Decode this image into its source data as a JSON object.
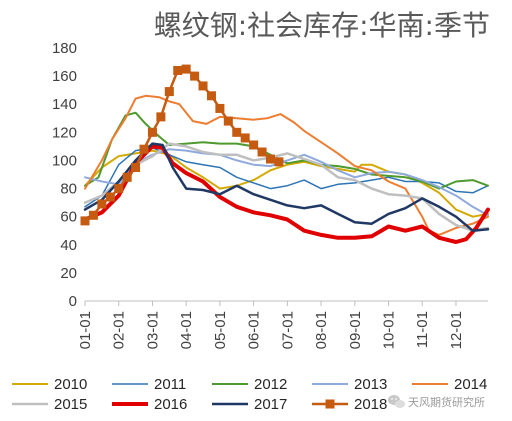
{
  "chart_data": {
    "type": "line",
    "title": "螺纹钢:社会库存:华南:季节",
    "xlabel": "",
    "ylabel": "",
    "ylim": [
      0,
      180
    ],
    "yticks": [
      0,
      20,
      40,
      60,
      80,
      100,
      120,
      140,
      160,
      180
    ],
    "categories": [
      "01-01",
      "02-01",
      "03-01",
      "04-01",
      "05-01",
      "06-01",
      "07-01",
      "08-01",
      "09-01",
      "10-01",
      "11-01",
      "12-01"
    ],
    "x_domain": [
      0,
      11.95
    ],
    "grid": false,
    "legend": "bottom",
    "series": [
      {
        "name": "2010",
        "color": "#d4a900",
        "width": 2,
        "marker": "none",
        "points": [
          [
            0,
            82
          ],
          [
            0.5,
            95
          ],
          [
            1,
            103
          ],
          [
            1.5,
            105
          ],
          [
            2,
            107
          ],
          [
            2.5,
            104
          ],
          [
            3,
            95
          ],
          [
            3.5,
            88
          ],
          [
            4,
            80
          ],
          [
            4.5,
            82
          ],
          [
            5,
            86
          ],
          [
            5.5,
            93
          ],
          [
            6,
            97
          ],
          [
            6.5,
            99
          ],
          [
            7,
            96
          ],
          [
            7.5,
            94
          ],
          [
            8,
            92
          ],
          [
            8.2,
            97
          ],
          [
            8.5,
            97
          ],
          [
            9,
            92
          ],
          [
            9.5,
            90
          ],
          [
            10,
            84
          ],
          [
            10.5,
            77
          ],
          [
            11,
            65
          ],
          [
            11.5,
            60
          ],
          [
            11.95,
            62
          ]
        ]
      },
      {
        "name": "2011",
        "color": "#2e75b6",
        "width": 1.5,
        "marker": "none",
        "points": [
          [
            0,
            67
          ],
          [
            0.5,
            75
          ],
          [
            1,
            97
          ],
          [
            1.5,
            107
          ],
          [
            2,
            109
          ],
          [
            2.5,
            104
          ],
          [
            3,
            99
          ],
          [
            3.5,
            97
          ],
          [
            4,
            95
          ],
          [
            4.5,
            88
          ],
          [
            5,
            84
          ],
          [
            5.5,
            80
          ],
          [
            6,
            82
          ],
          [
            6.5,
            86
          ],
          [
            7,
            80
          ],
          [
            7.5,
            83
          ],
          [
            8,
            84
          ],
          [
            8.5,
            86
          ],
          [
            9,
            88
          ],
          [
            9.5,
            85
          ],
          [
            10,
            85
          ],
          [
            10.5,
            84
          ],
          [
            11,
            78
          ],
          [
            11.5,
            77
          ],
          [
            11.95,
            82
          ]
        ]
      },
      {
        "name": "2012",
        "color": "#4e9a2f",
        "width": 2,
        "marker": "none",
        "points": [
          [
            0,
            82
          ],
          [
            0.4,
            88
          ],
          [
            0.8,
            115
          ],
          [
            1.2,
            132
          ],
          [
            1.5,
            134
          ],
          [
            1.8,
            126
          ],
          [
            2.2,
            117
          ],
          [
            2.5,
            111
          ],
          [
            3,
            112
          ],
          [
            3.5,
            113
          ],
          [
            4,
            112
          ],
          [
            4.5,
            112
          ],
          [
            5,
            110
          ],
          [
            5.5,
            104
          ],
          [
            6,
            98
          ],
          [
            6.5,
            100
          ],
          [
            7,
            97
          ],
          [
            7.5,
            96
          ],
          [
            8,
            94
          ],
          [
            8.5,
            90
          ],
          [
            9,
            89
          ],
          [
            9.5,
            88
          ],
          [
            10,
            85
          ],
          [
            10.5,
            80
          ],
          [
            11,
            85
          ],
          [
            11.5,
            86
          ],
          [
            11.95,
            82
          ]
        ]
      },
      {
        "name": "2013",
        "color": "#8faadc",
        "width": 2,
        "marker": "none",
        "points": [
          [
            0,
            88
          ],
          [
            0.5,
            85
          ],
          [
            1,
            83
          ],
          [
            1.5,
            98
          ],
          [
            2,
            104
          ],
          [
            2.5,
            108
          ],
          [
            3,
            107
          ],
          [
            3.5,
            105
          ],
          [
            4,
            104
          ],
          [
            4.5,
            100
          ],
          [
            5,
            97
          ],
          [
            5.5,
            96
          ],
          [
            6,
            100
          ],
          [
            6.5,
            104
          ],
          [
            7,
            99
          ],
          [
            7.5,
            93
          ],
          [
            8,
            88
          ],
          [
            8.5,
            91
          ],
          [
            9,
            92
          ],
          [
            9.5,
            90
          ],
          [
            10,
            86
          ],
          [
            10.5,
            81
          ],
          [
            11,
            75
          ],
          [
            11.5,
            67
          ],
          [
            11.95,
            61
          ]
        ]
      },
      {
        "name": "2014",
        "color": "#ed7d31",
        "width": 2,
        "marker": "none",
        "points": [
          [
            0,
            80
          ],
          [
            0.5,
            100
          ],
          [
            0.8,
            115
          ],
          [
            1.2,
            130
          ],
          [
            1.5,
            144
          ],
          [
            1.8,
            146
          ],
          [
            2.2,
            145
          ],
          [
            2.5,
            142
          ],
          [
            2.8,
            140
          ],
          [
            3.2,
            128
          ],
          [
            3.6,
            126
          ],
          [
            4,
            131
          ],
          [
            4.5,
            130
          ],
          [
            5,
            129
          ],
          [
            5.4,
            130
          ],
          [
            5.8,
            133
          ],
          [
            6.2,
            127
          ],
          [
            6.5,
            121
          ],
          [
            7,
            113
          ],
          [
            7.5,
            105
          ],
          [
            8,
            96
          ],
          [
            8.5,
            93
          ],
          [
            9,
            85
          ],
          [
            9.5,
            80
          ],
          [
            9.8,
            68
          ],
          [
            10,
            60
          ],
          [
            10.2,
            50
          ],
          [
            10.5,
            47
          ],
          [
            11,
            52
          ],
          [
            11.5,
            55
          ],
          [
            11.95,
            60
          ]
        ]
      },
      {
        "name": "2015",
        "color": "#bfbfbf",
        "width": 2.5,
        "marker": "none",
        "points": [
          [
            0,
            70
          ],
          [
            0.5,
            75
          ],
          [
            1,
            85
          ],
          [
            1.5,
            97
          ],
          [
            2,
            103
          ],
          [
            2.5,
            112
          ],
          [
            3,
            110
          ],
          [
            3.5,
            106
          ],
          [
            4,
            104
          ],
          [
            4.5,
            104
          ],
          [
            5,
            100
          ],
          [
            5.5,
            102
          ],
          [
            6,
            105
          ],
          [
            6.5,
            101
          ],
          [
            7,
            97
          ],
          [
            7.5,
            88
          ],
          [
            8,
            86
          ],
          [
            8.5,
            80
          ],
          [
            9,
            76
          ],
          [
            9.5,
            75
          ],
          [
            10,
            73
          ],
          [
            10.5,
            62
          ],
          [
            11,
            54
          ],
          [
            11.5,
            50
          ],
          [
            11.95,
            52
          ]
        ]
      },
      {
        "name": "2016",
        "color": "#e00000",
        "width": 4,
        "marker": "none",
        "points": [
          [
            0,
            58
          ],
          [
            0.5,
            63
          ],
          [
            1,
            75
          ],
          [
            1.5,
            98
          ],
          [
            2,
            110
          ],
          [
            2.3,
            109
          ],
          [
            2.6,
            98
          ],
          [
            3,
            91
          ],
          [
            3.5,
            85
          ],
          [
            4,
            74
          ],
          [
            4.5,
            67
          ],
          [
            5,
            63
          ],
          [
            5.5,
            61
          ],
          [
            6,
            58
          ],
          [
            6.5,
            50
          ],
          [
            7,
            47
          ],
          [
            7.5,
            45
          ],
          [
            8,
            45
          ],
          [
            8.5,
            46
          ],
          [
            9,
            53
          ],
          [
            9.5,
            50
          ],
          [
            10,
            53
          ],
          [
            10.5,
            45
          ],
          [
            11,
            42
          ],
          [
            11.3,
            44
          ],
          [
            11.6,
            52
          ],
          [
            11.95,
            65
          ]
        ]
      },
      {
        "name": "2017",
        "color": "#203864",
        "width": 2.5,
        "marker": "none",
        "points": [
          [
            0,
            65
          ],
          [
            0.5,
            72
          ],
          [
            1,
            85
          ],
          [
            1.5,
            100
          ],
          [
            2,
            112
          ],
          [
            2.3,
            111
          ],
          [
            2.6,
            95
          ],
          [
            3,
            80
          ],
          [
            3.5,
            79
          ],
          [
            4,
            76
          ],
          [
            4.5,
            82
          ],
          [
            5,
            76
          ],
          [
            5.5,
            72
          ],
          [
            6,
            68
          ],
          [
            6.5,
            66
          ],
          [
            7,
            68
          ],
          [
            7.5,
            62
          ],
          [
            8,
            56
          ],
          [
            8.5,
            55
          ],
          [
            9,
            62
          ],
          [
            9.5,
            66
          ],
          [
            10,
            73
          ],
          [
            10.5,
            67
          ],
          [
            11,
            60
          ],
          [
            11.5,
            50
          ],
          [
            11.95,
            51
          ]
        ]
      },
      {
        "name": "2018",
        "color": "#c55a11",
        "width": 2.5,
        "marker": "square",
        "points": [
          [
            0,
            57
          ],
          [
            0.25,
            61
          ],
          [
            0.5,
            69
          ],
          [
            0.75,
            74
          ],
          [
            1,
            80
          ],
          [
            1.25,
            88
          ],
          [
            1.5,
            95
          ],
          [
            1.75,
            108
          ],
          [
            2,
            120
          ],
          [
            2.25,
            131
          ],
          [
            2.5,
            149
          ],
          [
            2.75,
            164
          ],
          [
            3,
            165
          ],
          [
            3.25,
            160
          ],
          [
            3.5,
            153
          ],
          [
            3.75,
            146
          ],
          [
            4,
            137
          ],
          [
            4.25,
            128
          ],
          [
            4.5,
            120
          ],
          [
            4.75,
            116
          ],
          [
            5,
            111
          ],
          [
            5.25,
            106
          ],
          [
            5.5,
            101
          ],
          [
            5.75,
            99
          ]
        ]
      }
    ]
  },
  "watermark": {
    "text": "天风期货研究所",
    "icon": "wechat-icon"
  }
}
